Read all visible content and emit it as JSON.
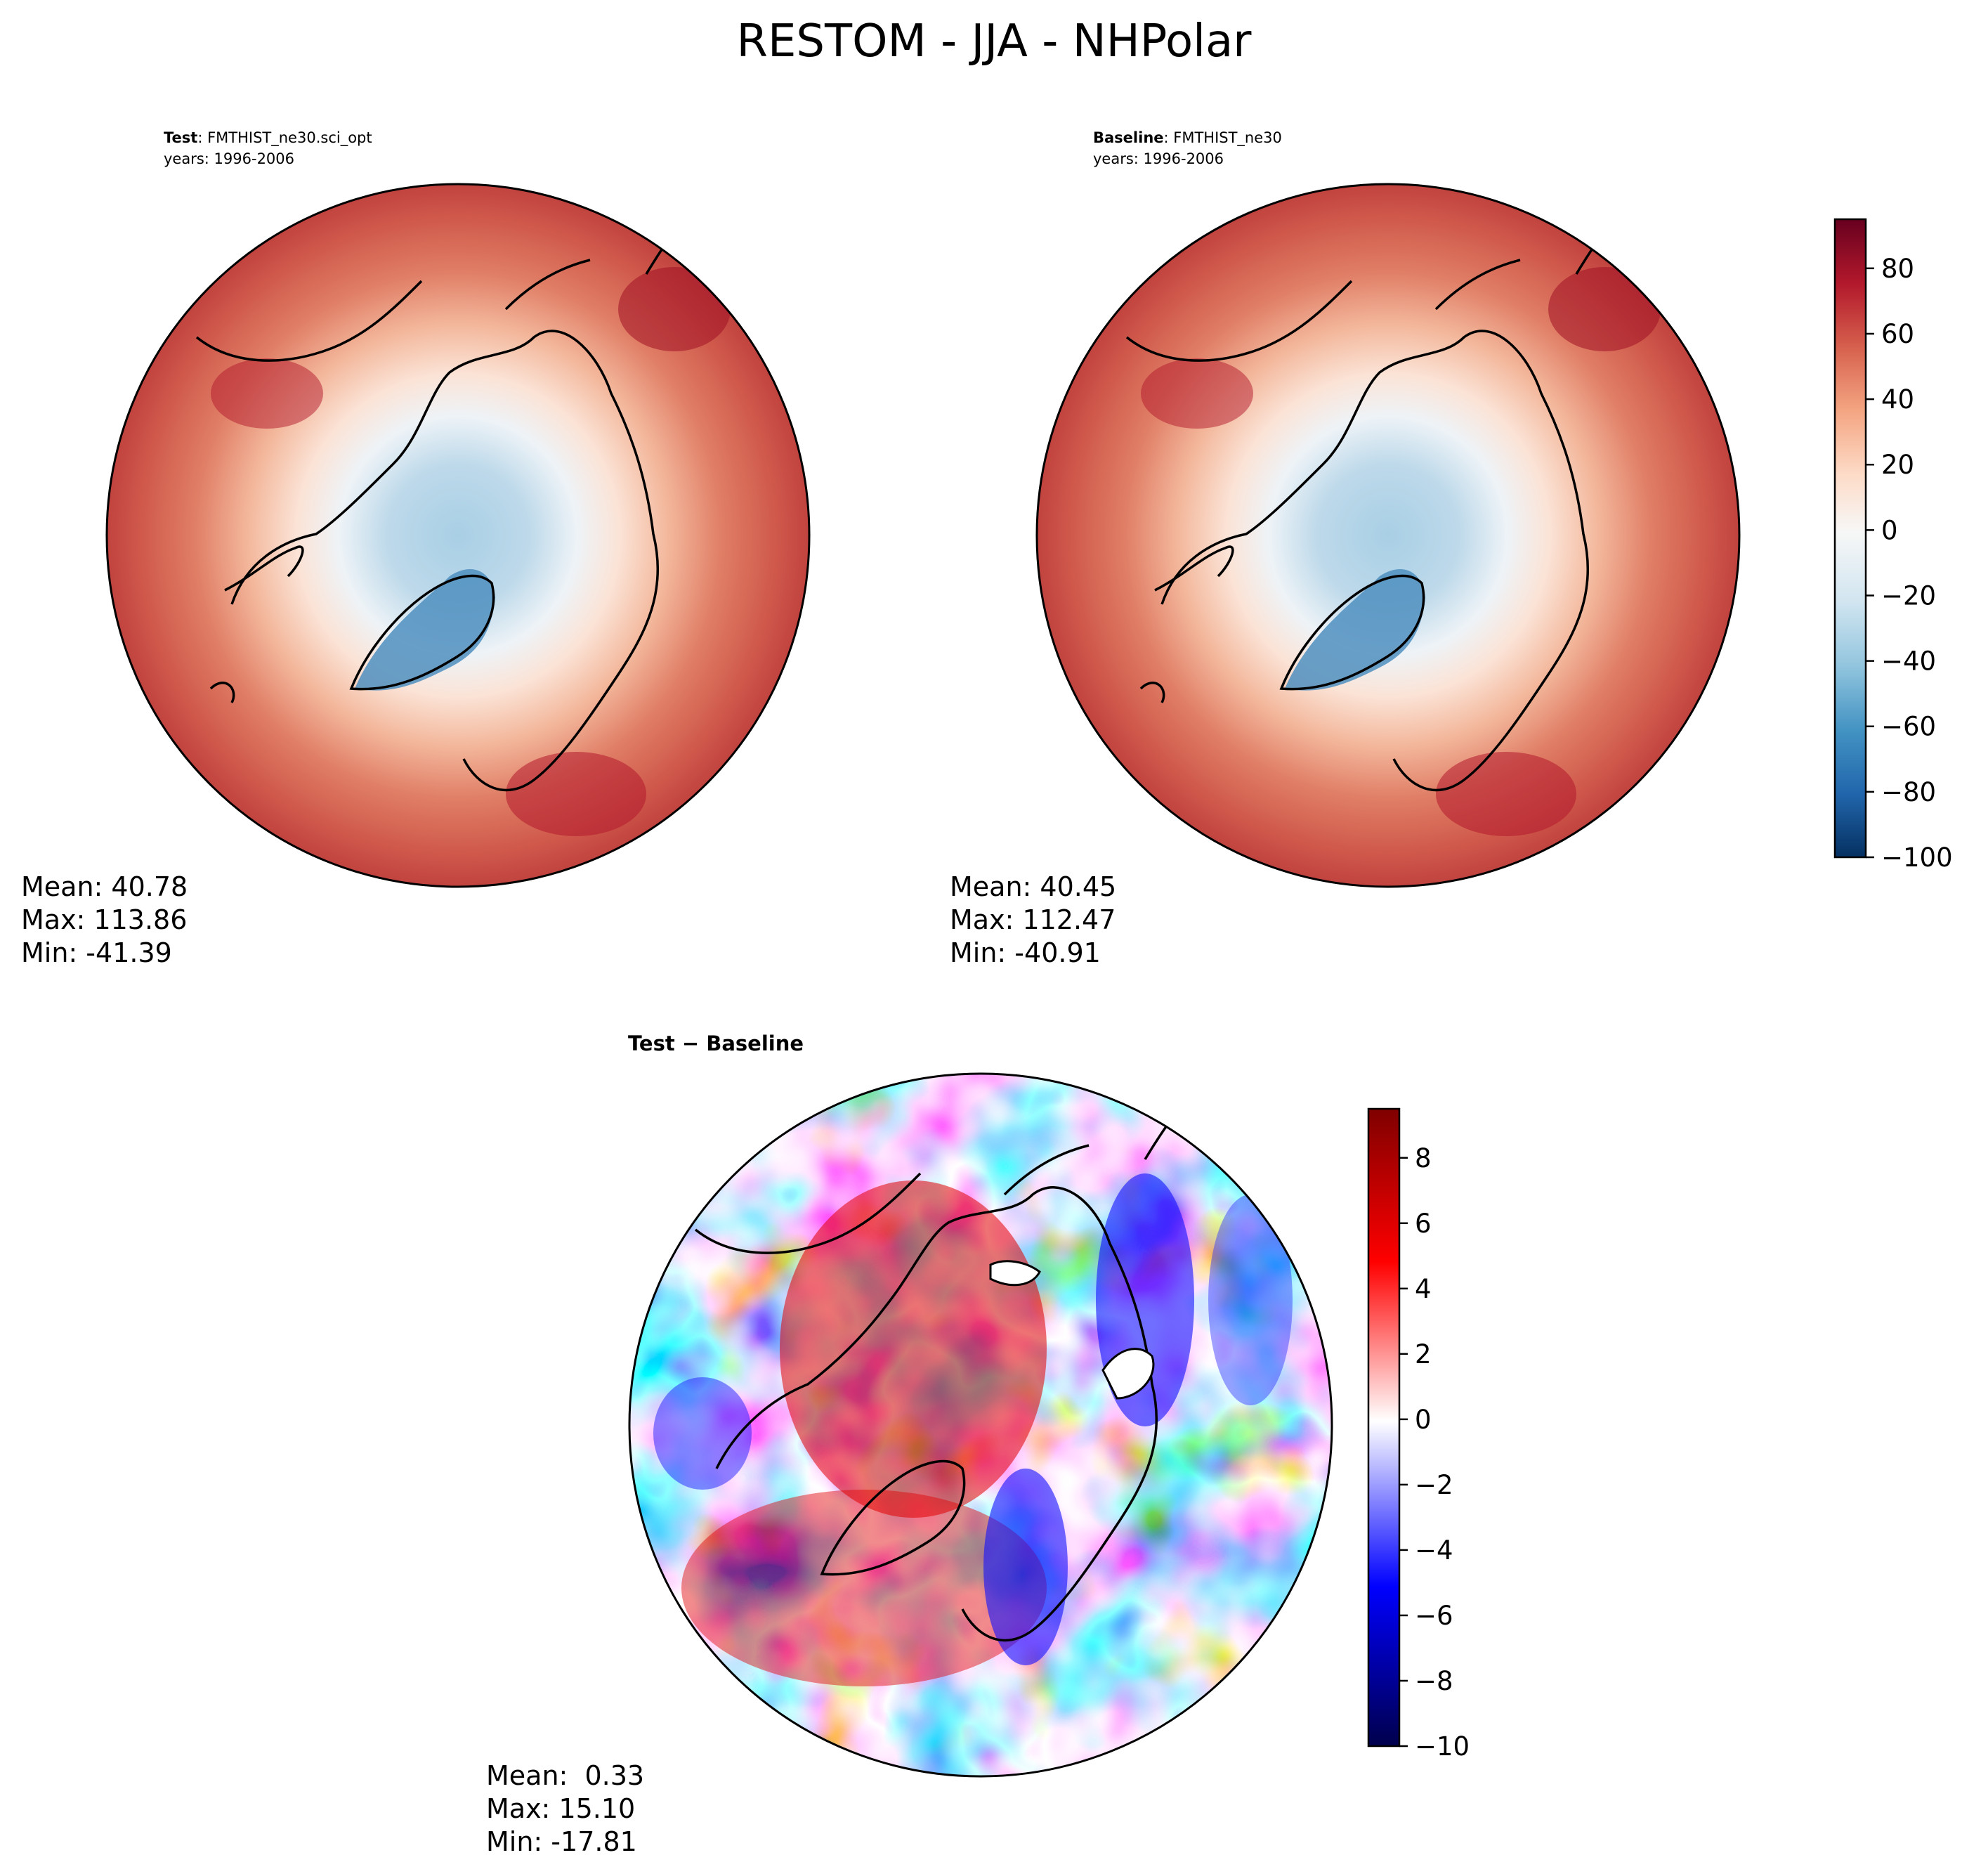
{
  "figure": {
    "title": "RESTOM - JJA - NHPolar"
  },
  "panels": [
    {
      "id": "test",
      "label_bold": "Test",
      "label_rest": ": FMTHIST_ne30.sci_opt",
      "years": "years: 1996-2006",
      "stats": {
        "mean": "Mean: 40.78",
        "max": "Max: 113.86",
        "min": "Min: -41.39"
      }
    },
    {
      "id": "baseline",
      "label_bold": "Baseline",
      "label_rest": ": FMTHIST_ne30",
      "years": "years: 1996-2006",
      "stats": {
        "mean": "Mean: 40.45",
        "max": "Max: 112.47",
        "min": "Min: -40.91"
      }
    },
    {
      "id": "diff",
      "label_bold": "Test − Baseline",
      "label_rest": "",
      "years": "",
      "stats": {
        "mean": "Mean:  0.33",
        "max": "Max: 15.10",
        "min": "Min: -17.81"
      }
    }
  ],
  "chart_data": [
    {
      "type": "heatmap",
      "title": "Test: FMTHIST_ne30.sci_opt",
      "projection": "north polar stereographic",
      "colormap": "RdBu_r",
      "colorbar_range": [
        -100,
        95
      ],
      "colorbar_ticks": [
        80,
        60,
        40,
        20,
        0,
        -20,
        -40,
        -60,
        -80,
        -100
      ],
      "stats": {
        "mean": 40.78,
        "max": 113.86,
        "min": -41.39
      }
    },
    {
      "type": "heatmap",
      "title": "Baseline: FMTHIST_ne30",
      "projection": "north polar stereographic",
      "colormap": "RdBu_r",
      "colorbar_range": [
        -100,
        95
      ],
      "colorbar_ticks": [
        80,
        60,
        40,
        20,
        0,
        -20,
        -40,
        -60,
        -80,
        -100
      ],
      "stats": {
        "mean": 40.45,
        "max": 112.47,
        "min": -40.91
      }
    },
    {
      "type": "heatmap",
      "title": "Test − Baseline",
      "projection": "north polar stereographic",
      "colormap": "seismic",
      "colorbar_range": [
        -10,
        9.5
      ],
      "colorbar_ticks": [
        8,
        6,
        4,
        2,
        0,
        -2,
        -4,
        -6,
        -8,
        -10
      ],
      "stats": {
        "mean": 0.33,
        "max": 15.1,
        "min": -17.81
      }
    }
  ],
  "colorbars": {
    "main": {
      "ticks": [
        "80",
        "60",
        "40",
        "20",
        "0",
        "−20",
        "−40",
        "−60",
        "−80",
        "−100"
      ]
    },
    "diff": {
      "ticks": [
        "8",
        "6",
        "4",
        "2",
        "0",
        "−2",
        "−4",
        "−6",
        "−8",
        "−10"
      ]
    }
  },
  "colors": {
    "rdbu": [
      "#053061",
      "#2166ac",
      "#4393c3",
      "#92c5de",
      "#d1e5f0",
      "#f7f7f7",
      "#fddbc7",
      "#f4a582",
      "#d6604d",
      "#b2182b",
      "#67001f"
    ],
    "seismic": [
      "#00004c",
      "#0000ff",
      "#ffffff",
      "#ff0000",
      "#7f0000"
    ]
  }
}
